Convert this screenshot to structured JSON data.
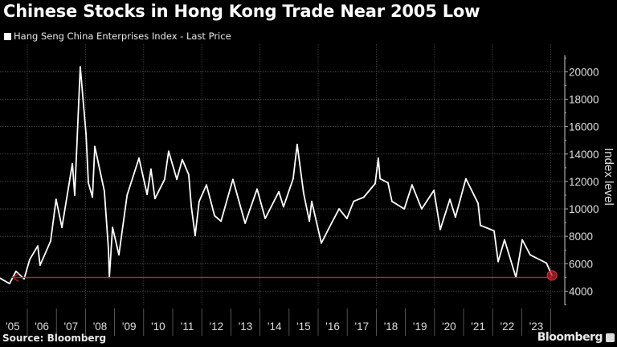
{
  "title": "Chinese Stocks in Hong Kong Trade Near 2005 Low",
  "source": "Source: Bloomberg",
  "brand": "Bloomberg",
  "colors": {
    "background": "#000000",
    "line": "#ffffff",
    "annotation": "#c0202a"
  },
  "chart_data": {
    "type": "line",
    "title": "Chinese Stocks in Hong Kong Trade Near 2005 Low",
    "ylabel": "Index level",
    "xlabel": "",
    "ylim": [
      3000,
      21000
    ],
    "xlim": [
      2005.05,
      2024.05
    ],
    "y_ticks": [
      4000,
      6000,
      8000,
      10000,
      12000,
      14000,
      16000,
      18000,
      20000
    ],
    "x_tick_labels": [
      "'05",
      "'06",
      "'07",
      "'08",
      "'09",
      "'10",
      "'11",
      "'12",
      "'13",
      "'14",
      "'15",
      "'16",
      "'17",
      "'18",
      "'19",
      "'20",
      "'21",
      "'22",
      "'23"
    ],
    "grid": true,
    "legend_position": "top-left",
    "series": [
      {
        "name": "Hang Seng China Enterprises Index - Last Price",
        "points": [
          [
            2005.06,
            4950
          ],
          [
            2005.39,
            4550
          ],
          [
            2005.61,
            5450
          ],
          [
            2005.89,
            4900
          ],
          [
            2006.08,
            6300
          ],
          [
            2006.36,
            7300
          ],
          [
            2006.44,
            5900
          ],
          [
            2006.8,
            7650
          ],
          [
            2006.99,
            10700
          ],
          [
            2007.19,
            8650
          ],
          [
            2007.55,
            13300
          ],
          [
            2007.63,
            11000
          ],
          [
            2007.82,
            20360
          ],
          [
            2008.02,
            15450
          ],
          [
            2008.1,
            11900
          ],
          [
            2008.24,
            10850
          ],
          [
            2008.32,
            14550
          ],
          [
            2008.65,
            11300
          ],
          [
            2008.79,
            7050
          ],
          [
            2008.82,
            5000
          ],
          [
            2008.93,
            8650
          ],
          [
            2009.15,
            6650
          ],
          [
            2009.43,
            11000
          ],
          [
            2009.84,
            13700
          ],
          [
            2010.12,
            11050
          ],
          [
            2010.25,
            12900
          ],
          [
            2010.39,
            10750
          ],
          [
            2010.72,
            12150
          ],
          [
            2010.86,
            14200
          ],
          [
            2011.14,
            12150
          ],
          [
            2011.33,
            13600
          ],
          [
            2011.55,
            12500
          ],
          [
            2011.64,
            10150
          ],
          [
            2011.77,
            8050
          ],
          [
            2011.91,
            10550
          ],
          [
            2012.16,
            11750
          ],
          [
            2012.44,
            9500
          ],
          [
            2012.66,
            9100
          ],
          [
            2013.07,
            12150
          ],
          [
            2013.49,
            8950
          ],
          [
            2013.9,
            11450
          ],
          [
            2014.18,
            9300
          ],
          [
            2014.65,
            11250
          ],
          [
            2014.81,
            10150
          ],
          [
            2015.14,
            12200
          ],
          [
            2015.28,
            14700
          ],
          [
            2015.5,
            11150
          ],
          [
            2015.7,
            9100
          ],
          [
            2015.78,
            10550
          ],
          [
            2016.11,
            7500
          ],
          [
            2016.47,
            9000
          ],
          [
            2016.72,
            10000
          ],
          [
            2016.99,
            9300
          ],
          [
            2017.22,
            10550
          ],
          [
            2017.57,
            10850
          ],
          [
            2017.96,
            11850
          ],
          [
            2018.07,
            13700
          ],
          [
            2018.13,
            12200
          ],
          [
            2018.4,
            11900
          ],
          [
            2018.54,
            10550
          ],
          [
            2018.96,
            10000
          ],
          [
            2019.23,
            11750
          ],
          [
            2019.56,
            10000
          ],
          [
            2019.98,
            11350
          ],
          [
            2020.2,
            8500
          ],
          [
            2020.53,
            10700
          ],
          [
            2020.72,
            9400
          ],
          [
            2021.08,
            12200
          ],
          [
            2021.5,
            10400
          ],
          [
            2021.58,
            8800
          ],
          [
            2022.05,
            8400
          ],
          [
            2022.19,
            6150
          ],
          [
            2022.41,
            7750
          ],
          [
            2022.8,
            5000
          ],
          [
            2023.02,
            7750
          ],
          [
            2023.29,
            6650
          ],
          [
            2023.85,
            6050
          ],
          [
            2024.04,
            5150
          ]
        ]
      }
    ],
    "annotations": [
      {
        "type": "horizontal-arrow",
        "value": 5000,
        "from": 2024.04,
        "to": 2005.5
      },
      {
        "type": "circle-marker",
        "x": 2024.04,
        "value": 5150
      }
    ]
  }
}
